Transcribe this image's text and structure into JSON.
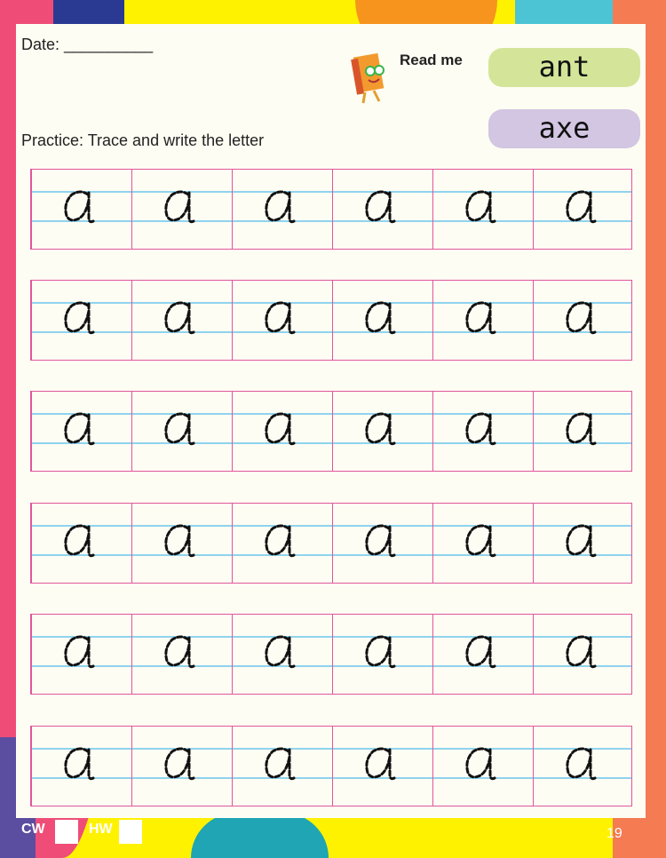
{
  "header": {
    "date_label": "Date: __________",
    "read_me": "Read me",
    "words": [
      "ant",
      "axe"
    ],
    "instruction": "Practice: Trace and write the letter"
  },
  "practice": {
    "letter": "a",
    "rows": 6,
    "columns": 6
  },
  "footer": {
    "cw": "CW",
    "hw": "HW",
    "page_number": "19"
  },
  "colors": {
    "grid_border": "#e0569c",
    "guide_line": "#8fd3ee",
    "word1_bg": "#d4e59a",
    "word2_bg": "#d2c6e2"
  }
}
